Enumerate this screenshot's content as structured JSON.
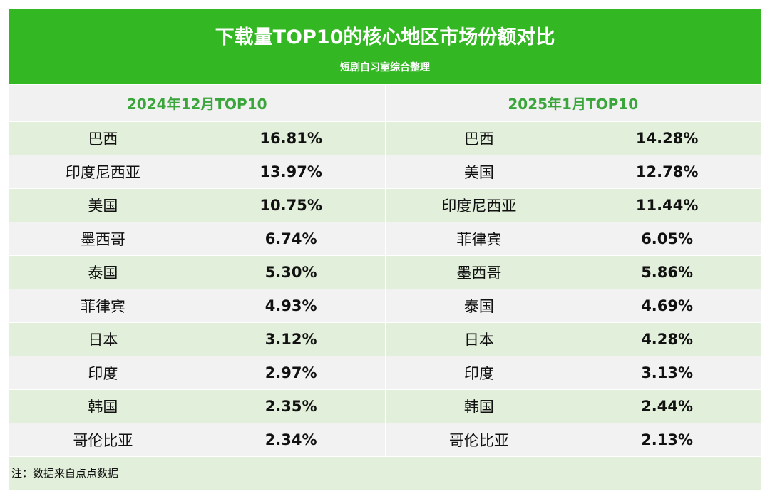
{
  "title": "下载量TOP10的核心地区市场份额对比",
  "subtitle": "短剧自习室综合整理",
  "note": "注：数据来自点点数据",
  "colors": {
    "header": "#33b722",
    "header_text": "#3aa53a",
    "row_green": "#e2efda",
    "row_gray": "#f2f2f2"
  },
  "chart_data": {
    "type": "table",
    "tables": [
      {
        "header": "2024年12月TOP10",
        "rows": [
          [
            "巴西",
            "16.81%"
          ],
          [
            "印度尼西亚",
            "13.97%"
          ],
          [
            "美国",
            "10.75%"
          ],
          [
            "墨西哥",
            "6.74%"
          ],
          [
            "泰国",
            "5.30%"
          ],
          [
            "菲律宾",
            "4.93%"
          ],
          [
            "日本",
            "3.12%"
          ],
          [
            "印度",
            "2.97%"
          ],
          [
            "韩国",
            "2.35%"
          ],
          [
            "哥伦比亚",
            "2.34%"
          ]
        ]
      },
      {
        "header": "2025年1月TOP10",
        "rows": [
          [
            "巴西",
            "14.28%"
          ],
          [
            "美国",
            "12.78%"
          ],
          [
            "印度尼西亚",
            "11.44%"
          ],
          [
            "菲律宾",
            "6.05%"
          ],
          [
            "墨西哥",
            "5.86%"
          ],
          [
            "泰国",
            "4.69%"
          ],
          [
            "日本",
            "4.28%"
          ],
          [
            "印度",
            "3.13%"
          ],
          [
            "韩国",
            "2.44%"
          ],
          [
            "哥伦比亚",
            "2.13%"
          ]
        ]
      }
    ]
  }
}
